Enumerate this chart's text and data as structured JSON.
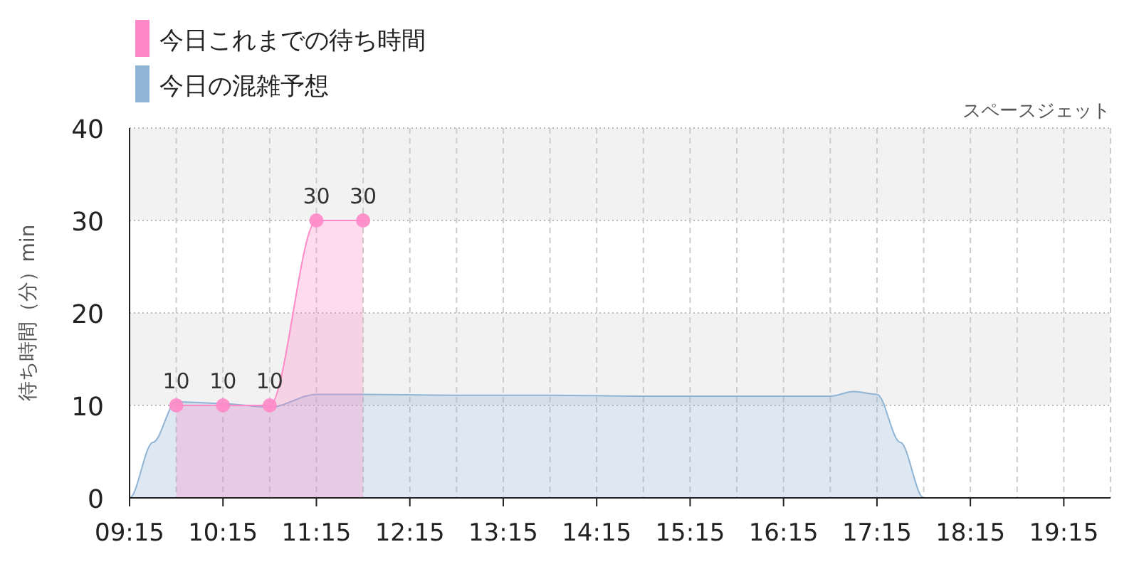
{
  "chart_data": {
    "type": "area",
    "title": "スペースジェット",
    "ylabel": "待ち時間（分）min",
    "legend": "top left",
    "grid": true,
    "xlim": [
      9.25,
      19.75
    ],
    "ylim": [
      0,
      40
    ],
    "yticks": [
      0,
      10,
      20,
      30,
      40
    ],
    "xticks": [
      {
        "value": 9.25,
        "label": "09:15"
      },
      {
        "value": 9.75,
        "label": null
      },
      {
        "value": 10.25,
        "label": "10:15"
      },
      {
        "value": 10.75,
        "label": null
      },
      {
        "value": 11.25,
        "label": "11:15"
      },
      {
        "value": 11.75,
        "label": null
      },
      {
        "value": 12.25,
        "label": "12:15"
      },
      {
        "value": 12.75,
        "label": null
      },
      {
        "value": 13.25,
        "label": "13:15"
      },
      {
        "value": 13.75,
        "label": null
      },
      {
        "value": 14.25,
        "label": "14:15"
      },
      {
        "value": 14.75,
        "label": null
      },
      {
        "value": 15.25,
        "label": "15:15"
      },
      {
        "value": 15.75,
        "label": null
      },
      {
        "value": 16.25,
        "label": "16:15"
      },
      {
        "value": 16.75,
        "label": null
      },
      {
        "value": 17.25,
        "label": "17:15"
      },
      {
        "value": 17.75,
        "label": null
      },
      {
        "value": 18.25,
        "label": "18:15"
      },
      {
        "value": 18.75,
        "label": null
      },
      {
        "value": 19.25,
        "label": "19:15"
      },
      {
        "value": 19.75,
        "label": null
      }
    ],
    "series": [
      {
        "name": "今日これまでの待ち時間",
        "color": "#ff88c8",
        "marker": "circle",
        "x": [
          9.75,
          10.25,
          10.75,
          11.25,
          11.75
        ],
        "values": [
          10,
          10,
          10,
          30,
          30
        ],
        "value_labels": [
          "10",
          "10",
          "10",
          "30",
          "30"
        ]
      },
      {
        "name": "今日の混雑予想",
        "color": "#90b4d4",
        "marker": "none",
        "x": [
          9.25,
          9.5,
          9.75,
          10.25,
          10.75,
          11.25,
          11.75,
          12.75,
          13.75,
          14.75,
          15.75,
          16.75,
          17,
          17.25,
          17.5,
          17.75,
          18,
          18.25,
          19.75
        ],
        "values": [
          0,
          6,
          10.4,
          10.2,
          9.8,
          11.2,
          11.2,
          11.1,
          11.1,
          11,
          11,
          11,
          11.5,
          11.2,
          6,
          0,
          0,
          0,
          0
        ]
      }
    ]
  }
}
